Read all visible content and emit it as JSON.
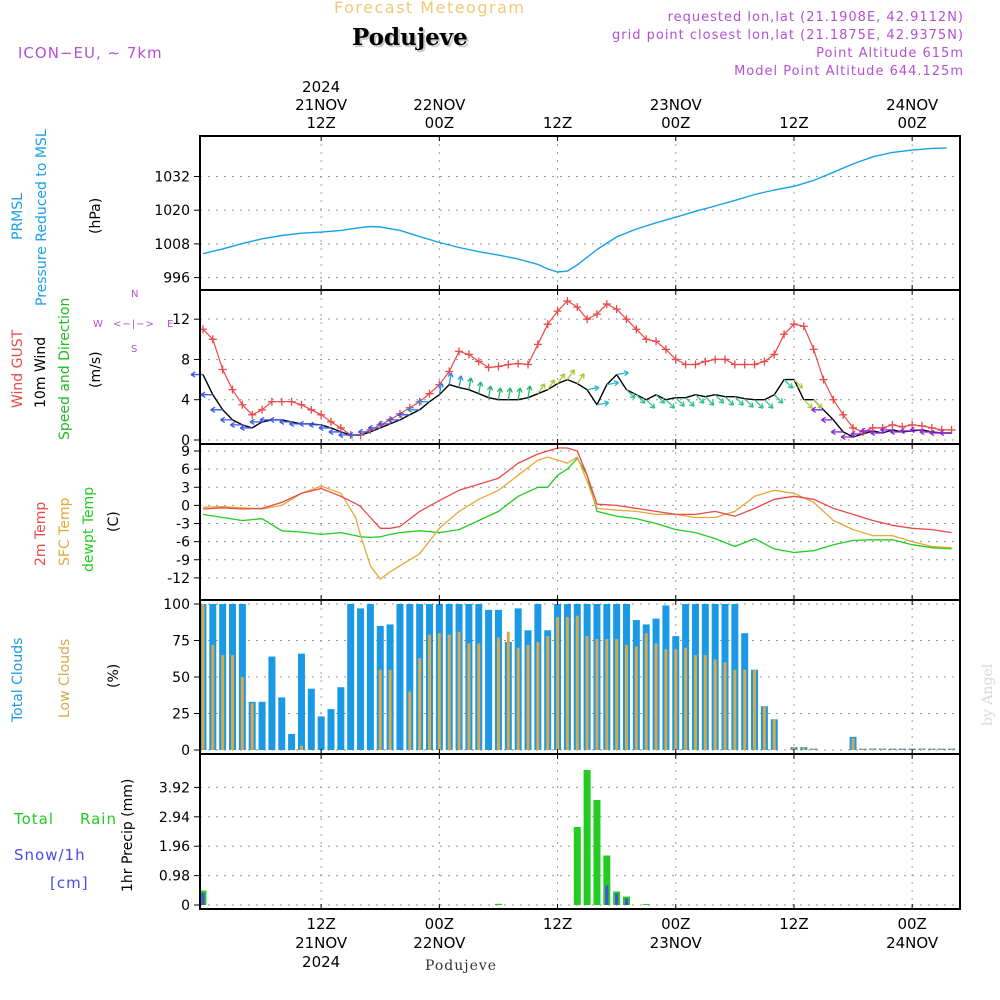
{
  "header": {
    "product": "Forecast Meteogram",
    "location": "Podujeve",
    "model": "ICON−EU, ∼ 7km",
    "requested": "requested lon,lat (21.1908E, 42.9112N)",
    "grid_point": "grid point closest lon,lat (21.1875E, 42.9375N)",
    "point_altitude": "Point Altitude 615m",
    "model_altitude": "Model Point Altitude 644.125m"
  },
  "footer": {
    "location": "Podujeve",
    "credit": "by Angel"
  },
  "colors": {
    "pressure": "#1aa0e6",
    "gust": "#e84a4a",
    "wind": "#000000",
    "wind_dir": "#22bb22",
    "temp2m": "#e84a4a",
    "sfc": "#e6a838",
    "dewpt": "#22cc22",
    "total_clouds": "#1a9ae6",
    "low_clouds": "#d8a84a",
    "rain": "#22cc22",
    "snow": "#4a4ae8",
    "compass": "#b450d2",
    "title": "#f2c878"
  },
  "time_axis": {
    "top": [
      {
        "t": 12,
        "lines": [
          "2024",
          "21NOV",
          "12Z"
        ]
      },
      {
        "t": 24,
        "lines": [
          "22NOV",
          "00Z"
        ]
      },
      {
        "t": 36,
        "lines": [
          "12Z"
        ]
      },
      {
        "t": 48,
        "lines": [
          "23NOV",
          "00Z"
        ]
      },
      {
        "t": 60,
        "lines": [
          "12Z"
        ]
      },
      {
        "t": 72,
        "lines": [
          "24NOV",
          "00Z"
        ]
      }
    ],
    "bottom": [
      {
        "t": 12,
        "lines": [
          "12Z",
          "21NOV",
          "2024"
        ]
      },
      {
        "t": 24,
        "lines": [
          "00Z",
          "22NOV"
        ]
      },
      {
        "t": 36,
        "lines": [
          "12Z"
        ]
      },
      {
        "t": 48,
        "lines": [
          "00Z",
          "23NOV"
        ]
      },
      {
        "t": 60,
        "lines": [
          "12Z"
        ]
      },
      {
        "t": 72,
        "lines": [
          "00Z",
          "24NOV"
        ]
      }
    ]
  },
  "panel_labels": {
    "pressure": [
      "PRMSL",
      "Pressure Reduced to MSL",
      "(hPa)"
    ],
    "wind": [
      "Wind GUST",
      "10m Wind",
      "Speed and Direction",
      "(m/s)"
    ],
    "temp": [
      "2m Temp",
      "SFC Temp",
      "dewpt Temp",
      "(C)"
    ],
    "clouds": [
      "Total Clouds",
      "Low Clouds",
      "(%)"
    ],
    "precip": [
      "Total",
      "Rain",
      "Snow/1h",
      "[cm]",
      "1hr Precip (mm)"
    ],
    "compass": {
      "n": "N",
      "s": "S",
      "w": "W",
      "e": "E",
      "arrows": "<−|−>"
    }
  },
  "chart_data": [
    {
      "type": "line",
      "title": "PRMSL",
      "ylabel": "Pressure Reduced to MSL (hPa)",
      "ylim": [
        993,
        1045
      ],
      "yticks": [
        996,
        1008,
        1020,
        1032
      ],
      "x_hours": [
        0,
        2,
        4,
        6,
        8,
        10,
        12,
        14,
        16,
        17,
        18,
        20,
        22,
        24,
        26,
        28,
        30,
        32,
        34,
        35,
        36,
        37,
        38,
        40,
        42,
        44,
        46,
        48,
        50,
        52,
        54,
        56,
        58,
        60,
        62,
        64,
        66,
        68,
        70,
        72,
        74,
        75.5
      ],
      "series": [
        {
          "name": "PRMSL",
          "values": [
            1004.5,
            1006.2,
            1008.1,
            1009.8,
            1011.0,
            1011.8,
            1012.2,
            1012.8,
            1013.8,
            1014.2,
            1014.0,
            1012.8,
            1010.6,
            1008.5,
            1006.7,
            1005.2,
            1004.0,
            1002.6,
            1000.7,
            999.1,
            998.0,
            998.3,
            1000.5,
            1006.0,
            1010.5,
            1013.3,
            1015.5,
            1017.5,
            1019.6,
            1021.5,
            1023.5,
            1025.6,
            1027.2,
            1028.5,
            1030.6,
            1033.5,
            1036.5,
            1039.0,
            1040.6,
            1041.4,
            1042.0,
            1042.2
          ]
        }
      ],
      "grid": true
    },
    {
      "type": "line",
      "title": "Wind GUST / 10m Wind",
      "ylabel": "Speed and Direction (m/s)",
      "ylim": [
        0,
        14.5
      ],
      "yticks": [
        0,
        4,
        8,
        12
      ],
      "x_hours": [
        0,
        1,
        2,
        3,
        4,
        5,
        6,
        7,
        8,
        9,
        10,
        11,
        12,
        13,
        14,
        15,
        16,
        17,
        18,
        19,
        20,
        21,
        22,
        23,
        24,
        25,
        26,
        27,
        28,
        29,
        30,
        31,
        32,
        33,
        34,
        35,
        36,
        37,
        38,
        39,
        40,
        41,
        42,
        43,
        44,
        45,
        46,
        47,
        48,
        49,
        50,
        51,
        52,
        53,
        54,
        55,
        56,
        57,
        58,
        59,
        60,
        61,
        62,
        63,
        64,
        65,
        66,
        67,
        68,
        69,
        70,
        71,
        72,
        73,
        74,
        75,
        76
      ],
      "series": [
        {
          "name": "Wind GUST",
          "values": [
            11.0,
            10.0,
            7.0,
            5.0,
            3.5,
            2.5,
            3.0,
            3.8,
            3.8,
            3.8,
            3.5,
            3.0,
            2.5,
            1.8,
            1.2,
            0.5,
            0.5,
            1.0,
            1.5,
            2.0,
            2.6,
            3.2,
            3.8,
            4.6,
            5.5,
            6.8,
            8.8,
            8.5,
            7.8,
            7.2,
            7.3,
            7.5,
            7.6,
            7.5,
            9.5,
            11.5,
            12.8,
            13.8,
            13.2,
            12.0,
            12.5,
            13.5,
            13.0,
            12.0,
            11.0,
            10.0,
            9.8,
            9.0,
            8.0,
            7.5,
            7.5,
            7.8,
            8.0,
            8.0,
            7.5,
            7.5,
            7.5,
            7.8,
            8.5,
            10.5,
            11.5,
            11.3,
            9.0,
            6.0,
            4.0,
            2.5,
            1.2,
            0.8,
            1.2,
            1.2,
            1.5,
            1.3,
            1.5,
            1.4,
            1.2,
            1.0,
            1.0
          ]
        },
        {
          "name": "10m Wind",
          "values": [
            6.5,
            4.5,
            3.0,
            2.0,
            1.5,
            1.2,
            1.8,
            2.0,
            2.0,
            1.8,
            1.6,
            1.6,
            1.5,
            1.2,
            0.8,
            0.5,
            0.5,
            0.8,
            1.2,
            1.6,
            2.0,
            2.5,
            3.0,
            3.8,
            4.5,
            5.5,
            5.2,
            5.0,
            4.6,
            4.2,
            4.0,
            4.0,
            4.0,
            4.2,
            4.6,
            5.0,
            5.6,
            6.0,
            5.6,
            5.0,
            3.5,
            5.5,
            6.5,
            5.0,
            4.5,
            4.0,
            4.5,
            4.0,
            4.2,
            4.2,
            4.5,
            4.3,
            4.5,
            4.3,
            4.3,
            4.1,
            4.0,
            4.0,
            4.5,
            6.0,
            6.0,
            4.0,
            4.0,
            3.0,
            2.0,
            0.8,
            0.3,
            0.6,
            0.9,
            0.7,
            1.0,
            0.8,
            0.9,
            1.0,
            0.8,
            0.7,
            0.7
          ]
        }
      ],
      "grid": true
    },
    {
      "type": "line",
      "title": "Temperature",
      "ylabel": "(C)",
      "ylim": [
        -15,
        9.5
      ],
      "yticks": [
        -12,
        -9,
        -6,
        -3,
        0,
        3,
        6,
        9
      ],
      "x_hours": [
        0,
        2,
        4,
        6,
        8,
        10,
        12,
        14,
        15.5,
        16,
        17,
        18,
        19,
        20,
        22,
        24,
        26,
        28,
        30,
        32,
        34,
        35,
        36,
        37,
        38,
        39,
        40,
        42,
        44,
        46,
        48,
        50,
        52,
        54,
        56,
        58,
        60,
        62,
        64,
        66,
        68,
        70,
        72,
        74,
        76
      ],
      "series": [
        {
          "name": "2m Temp",
          "values": [
            -0.6,
            -0.4,
            -0.6,
            -0.5,
            0.5,
            2.0,
            2.8,
            1.5,
            0.3,
            -0.2,
            -2.0,
            -3.8,
            -3.8,
            -3.5,
            -1.0,
            0.8,
            2.5,
            3.5,
            4.5,
            7.0,
            8.5,
            9.0,
            9.5,
            9.5,
            9.0,
            5.0,
            0.2,
            0.0,
            -0.5,
            -1.0,
            -1.5,
            -1.5,
            -1.0,
            -1.8,
            -0.5,
            1.0,
            1.5,
            1.0,
            -0.5,
            -1.5,
            -2.5,
            -3.3,
            -3.8,
            -4.0,
            -4.5
          ]
        },
        {
          "name": "SFC Temp",
          "values": [
            -0.3,
            -0.2,
            -0.4,
            -0.6,
            0.0,
            2.0,
            3.2,
            2.0,
            -2.0,
            -5.0,
            -10.0,
            -12.2,
            -11.0,
            -10.0,
            -8.0,
            -3.8,
            -1.0,
            1.0,
            2.5,
            5.0,
            7.5,
            8.0,
            7.5,
            7.0,
            8.0,
            4.0,
            -0.5,
            -0.8,
            -1.0,
            -1.5,
            -1.5,
            -2.0,
            -2.0,
            -1.0,
            1.5,
            2.5,
            2.0,
            0.5,
            -2.5,
            -4.0,
            -5.0,
            -5.0,
            -6.0,
            -6.8,
            -7.0
          ]
        },
        {
          "name": "dewpt Temp",
          "values": [
            -1.5,
            -2.0,
            -2.5,
            -2.2,
            -4.2,
            -4.4,
            -4.8,
            -4.5,
            -5.0,
            -5.2,
            -5.3,
            -5.2,
            -4.8,
            -4.5,
            -4.2,
            -4.5,
            -4.0,
            -2.5,
            -1.0,
            1.5,
            3.0,
            3.0,
            5.0,
            6.0,
            7.8,
            5.0,
            -1.0,
            -1.8,
            -2.2,
            -3.0,
            -4.0,
            -4.5,
            -5.5,
            -6.8,
            -5.5,
            -7.2,
            -7.8,
            -7.5,
            -6.5,
            -5.8,
            -5.7,
            -5.7,
            -6.5,
            -7.0,
            -7.2
          ]
        }
      ],
      "grid": true
    },
    {
      "type": "bar",
      "title": "Clouds",
      "ylabel": "(%)",
      "ylim": [
        0,
        100
      ],
      "yticks": [
        0,
        25,
        50,
        75,
        100
      ],
      "x_hours": [
        0,
        1,
        2,
        3,
        4,
        5,
        6,
        7,
        8,
        9,
        10,
        11,
        12,
        13,
        14,
        15,
        16,
        17,
        18,
        19,
        20,
        21,
        22,
        23,
        24,
        25,
        26,
        27,
        28,
        29,
        30,
        31,
        32,
        33,
        34,
        35,
        36,
        37,
        38,
        39,
        40,
        41,
        42,
        43,
        44,
        45,
        46,
        47,
        48,
        49,
        50,
        51,
        52,
        53,
        54,
        55,
        56,
        57,
        58,
        59,
        60,
        61,
        62,
        63,
        64,
        65,
        66,
        67,
        68,
        69,
        70,
        71,
        72,
        73,
        74,
        75,
        76
      ],
      "series": [
        {
          "name": "Total Clouds",
          "values": [
            100,
            100,
            100,
            100,
            100,
            33,
            33,
            64,
            36,
            11,
            66,
            42,
            23,
            28,
            43,
            100,
            97,
            100,
            85,
            86,
            100,
            100,
            100,
            100,
            100,
            100,
            100,
            100,
            100,
            96,
            96,
            74,
            97,
            82,
            100,
            82,
            100,
            100,
            100,
            100,
            100,
            100,
            100,
            100,
            89,
            86,
            90,
            99,
            78,
            100,
            100,
            100,
            100,
            100,
            100,
            80,
            55,
            30,
            21,
            0,
            2,
            2,
            1,
            0,
            0,
            0,
            9,
            1,
            1,
            1,
            1,
            1,
            1,
            1,
            1,
            1,
            1
          ]
        },
        {
          "name": "Low Clouds",
          "values": [
            100,
            72,
            65,
            65,
            50,
            32,
            0,
            0,
            0,
            0,
            3,
            0,
            0,
            0,
            0,
            0,
            0,
            0,
            55,
            55,
            0,
            40,
            63,
            79,
            80,
            79,
            81,
            73,
            73,
            0,
            77,
            81,
            70,
            72,
            74,
            78,
            91,
            91,
            92,
            78,
            76,
            76,
            76,
            72,
            71,
            80,
            73,
            69,
            69,
            70,
            65,
            65,
            62,
            60,
            55,
            55,
            55,
            30,
            21,
            0,
            2,
            2,
            1,
            0,
            0,
            0,
            8,
            1,
            1,
            1,
            1,
            1,
            1,
            1,
            1,
            1,
            1
          ]
        }
      ],
      "grid": true
    },
    {
      "type": "bar",
      "title": "1hr Precip",
      "ylabel": "1hr Precip (mm)",
      "ylim": [
        0,
        4.9
      ],
      "yticks": [
        0,
        0.98,
        1.96,
        2.94,
        3.92
      ],
      "x_hours": [
        0,
        30,
        38,
        39,
        40,
        41,
        42,
        43,
        45
      ],
      "series": [
        {
          "name": "Total Rain",
          "values": [
            0.48,
            0.04,
            2.6,
            4.5,
            3.5,
            1.65,
            0.45,
            0.28,
            0.03
          ]
        },
        {
          "name": "Snow/1h",
          "values": [
            0.4,
            0.0,
            0.0,
            0.0,
            0.0,
            0.65,
            0.38,
            0.22,
            0.0
          ]
        }
      ],
      "grid": true
    }
  ]
}
